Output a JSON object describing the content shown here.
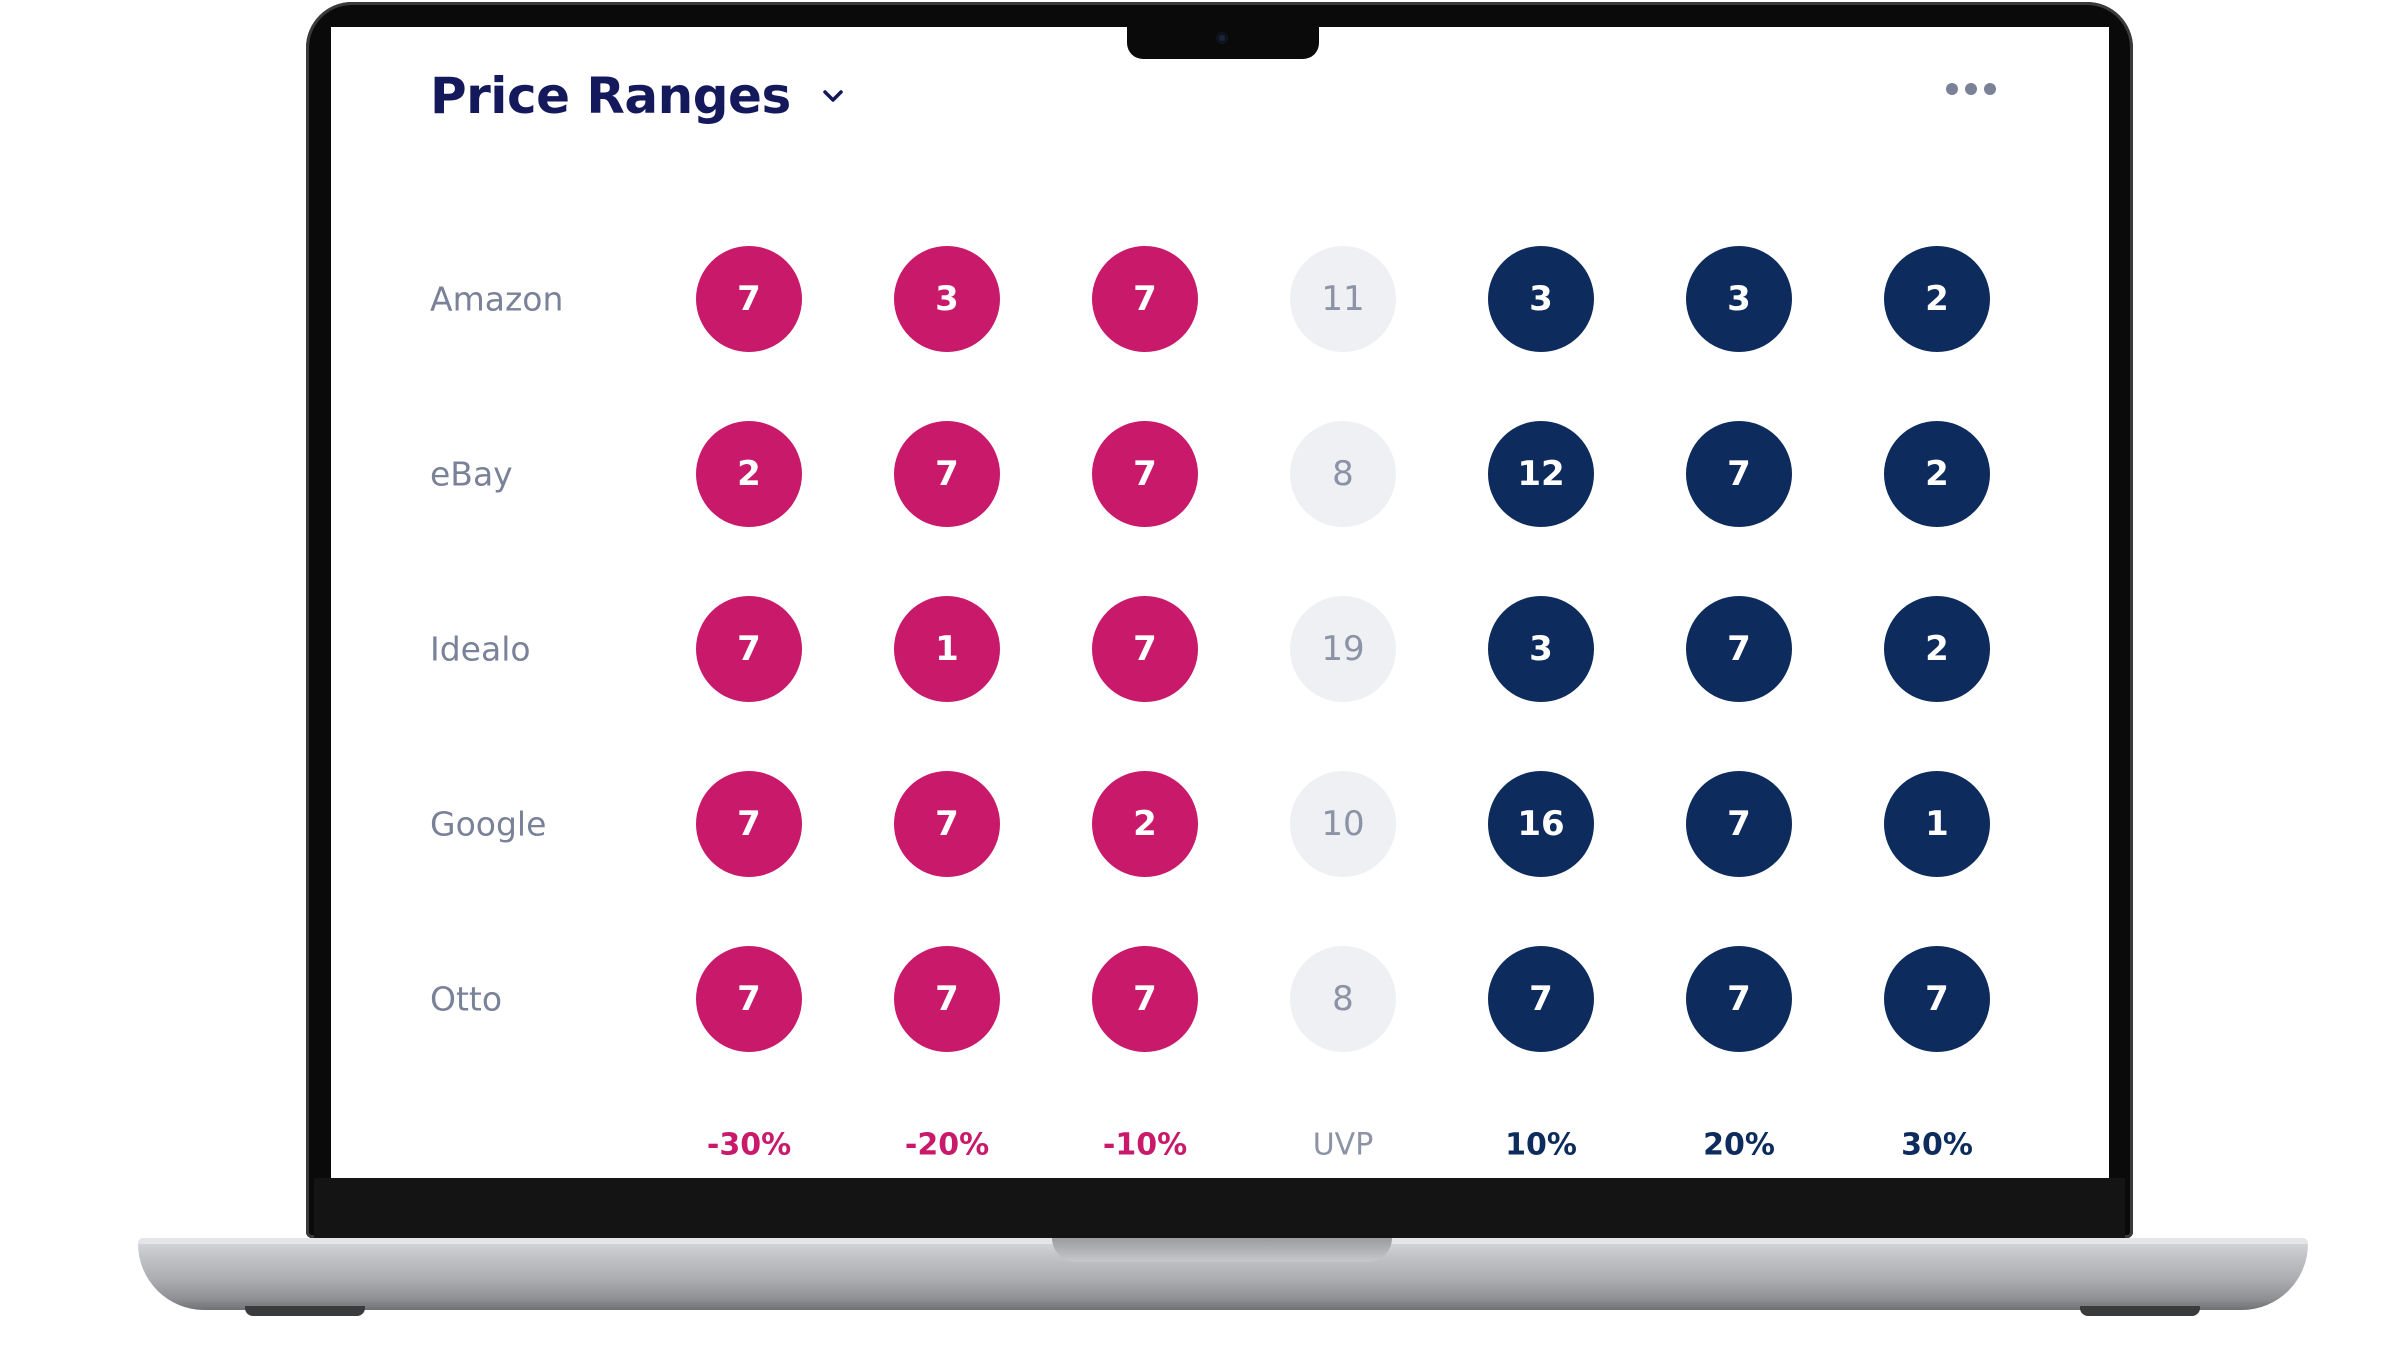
{
  "widget": {
    "title": "Price Ranges"
  },
  "icons": {
    "chevron": "chevron-down-icon",
    "more": "more-horizontal-icon"
  },
  "colors": {
    "below_uvp": "#c8196a",
    "uvp": "#eef0f4",
    "above_uvp": "#0d2b5c",
    "title": "#14195c"
  },
  "columns": [
    {
      "label": "-30%",
      "kind": "neg"
    },
    {
      "label": "-20%",
      "kind": "neg"
    },
    {
      "label": "-10%",
      "kind": "neg"
    },
    {
      "label": "UVP",
      "kind": "mid"
    },
    {
      "label": "10%",
      "kind": "pos"
    },
    {
      "label": "20%",
      "kind": "pos"
    },
    {
      "label": "30%",
      "kind": "pos"
    }
  ],
  "rows": [
    {
      "label": "Amazon",
      "values": [
        "7",
        "3",
        "7",
        "11",
        "3",
        "3",
        "2"
      ]
    },
    {
      "label": "eBay",
      "values": [
        "2",
        "7",
        "7",
        "8",
        "12",
        "7",
        "2"
      ]
    },
    {
      "label": "Idealo",
      "values": [
        "7",
        "1",
        "7",
        "19",
        "3",
        "7",
        "2"
      ]
    },
    {
      "label": "Google",
      "values": [
        "7",
        "7",
        "2",
        "10",
        "16",
        "7",
        "1"
      ]
    },
    {
      "label": "Otto",
      "values": [
        "7",
        "7",
        "7",
        "8",
        "7",
        "7",
        "7"
      ]
    }
  ]
}
